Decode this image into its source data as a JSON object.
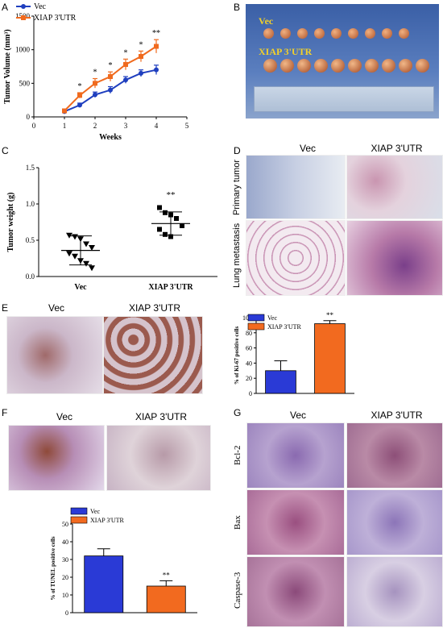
{
  "panels": {
    "A": "A",
    "B": "B",
    "C": "C",
    "D": "D",
    "E": "E",
    "F": "F",
    "G": "G"
  },
  "colors": {
    "vec": "#1f3fbf",
    "xiap": "#f06a1e",
    "bar_vec": "#2a3ad6",
    "bar_xiap": "#f26a1f"
  },
  "legend": {
    "vec": "Vec",
    "xiap": "XIAP 3'UTR"
  },
  "photo_b": {
    "label_vec": "Vec",
    "label_xiap": "XIAP 3'UTR"
  },
  "panel_d": {
    "col_vec": "Vec",
    "col_xiap": "XIAP 3'UTR",
    "row1": "Primary tumor",
    "row2": "Lung metastasis"
  },
  "panel_e": {
    "col_vec": "Vec",
    "col_xiap": "XIAP 3'UTR"
  },
  "panel_f": {
    "col_vec": "Vec",
    "col_xiap": "XIAP 3'UTR"
  },
  "panel_g": {
    "col_vec": "Vec",
    "col_xiap": "XIAP 3'UTR",
    "row1": "Bcl-2",
    "row2": "Bax",
    "row3": "Caspase-3"
  },
  "chart_data": [
    {
      "id": "A",
      "type": "line",
      "xlabel": "Weeks",
      "ylabel": "Tumor Volume (mm³)",
      "xlim": [
        0,
        5
      ],
      "ylim": [
        0,
        1500
      ],
      "xticks": [
        "0",
        "1",
        "2",
        "3",
        "4",
        "5"
      ],
      "yticks": [
        "0",
        "500",
        "1000",
        "1500"
      ],
      "x": [
        1,
        1.5,
        2,
        2.5,
        3,
        3.5,
        4
      ],
      "series": [
        {
          "name": "Vec",
          "values": [
            80,
            175,
            330,
            400,
            550,
            650,
            700
          ],
          "err": [
            15,
            30,
            40,
            50,
            50,
            50,
            70
          ]
        },
        {
          "name": "XIAP 3'UTR",
          "values": [
            90,
            320,
            500,
            600,
            780,
            900,
            1050
          ],
          "err": [
            15,
            40,
            70,
            70,
            80,
            80,
            100
          ]
        }
      ],
      "annotations": [
        "*",
        "*",
        "*",
        "*",
        "*",
        "**"
      ]
    },
    {
      "id": "C",
      "type": "scatter",
      "ylabel": "Tumor weight (g)",
      "ylim": [
        0,
        1.5
      ],
      "yticks": [
        "0.0",
        "0.5",
        "1.0",
        "1.5"
      ],
      "categories": [
        "Vec",
        "XIAP 3'UTR"
      ],
      "series": [
        {
          "name": "Vec",
          "points": [
            0.57,
            0.55,
            0.52,
            0.45,
            0.4,
            0.32,
            0.28,
            0.22,
            0.18,
            0.12
          ],
          "mean": 0.36,
          "sd": 0.2
        },
        {
          "name": "XIAP 3'UTR",
          "points": [
            0.95,
            0.88,
            0.85,
            0.8,
            0.7,
            0.65,
            0.58,
            0.55
          ],
          "mean": 0.73,
          "sd": 0.16
        }
      ],
      "annotation": "**"
    },
    {
      "id": "E",
      "type": "bar",
      "ylabel": "% of Ki-67 positive cells",
      "ylim": [
        0,
        100
      ],
      "yticks": [
        "0",
        "20",
        "40",
        "60",
        "80",
        "100"
      ],
      "categories": [
        "Vec",
        "XIAP 3'UTR"
      ],
      "series": [
        {
          "name": "Ki-67",
          "values": [
            30,
            92
          ],
          "err": [
            13,
            4
          ]
        }
      ],
      "annotation": "**"
    },
    {
      "id": "F",
      "type": "bar",
      "ylabel": "% of TUNEL positive cells",
      "ylim": [
        0,
        50
      ],
      "yticks": [
        "0",
        "10",
        "20",
        "30",
        "40",
        "50"
      ],
      "categories": [
        "Vec",
        "XIAP 3'UTR"
      ],
      "series": [
        {
          "name": "TUNEL",
          "values": [
            32,
            15
          ],
          "err": [
            4,
            3
          ]
        }
      ],
      "annotation": "**"
    }
  ]
}
